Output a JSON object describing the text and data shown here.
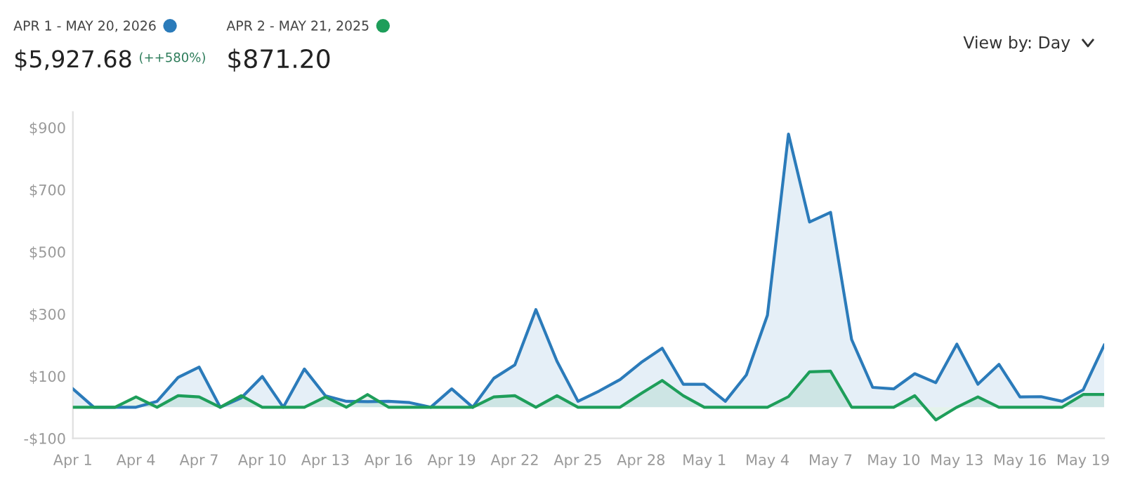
{
  "chart_data": {
    "type": "area",
    "x": [
      "2026-04-01",
      "2026-04-02",
      "2026-04-03",
      "2026-04-04",
      "2026-04-05",
      "2026-04-06",
      "2026-04-07",
      "2026-04-08",
      "2026-04-09",
      "2026-04-10",
      "2026-04-11",
      "2026-04-12",
      "2026-04-13",
      "2026-04-14",
      "2026-04-15",
      "2026-04-16",
      "2026-04-17",
      "2026-04-18",
      "2026-04-19",
      "2026-04-20",
      "2026-04-21",
      "2026-04-22",
      "2026-04-23",
      "2026-04-24",
      "2026-04-25",
      "2026-04-26",
      "2026-04-27",
      "2026-04-28",
      "2026-04-29",
      "2026-04-30",
      "2026-05-01",
      "2026-05-02",
      "2026-05-03",
      "2026-05-04",
      "2026-05-05",
      "2026-05-06",
      "2026-05-07",
      "2026-05-08",
      "2026-05-09",
      "2026-05-10",
      "2026-05-11",
      "2026-05-12",
      "2026-05-13",
      "2026-05-14",
      "2026-05-15",
      "2026-05-16",
      "2026-05-17",
      "2026-05-18",
      "2026-05-19",
      "2026-05-20"
    ],
    "series": [
      {
        "name": "APR 1 - MAY 20, 2026",
        "color": "#2b7bba",
        "values": [
          59,
          0,
          0,
          0,
          19,
          96,
          129,
          0,
          30,
          99,
          0,
          123,
          37,
          19,
          18,
          19,
          15,
          0,
          59,
          0,
          93,
          136,
          314,
          148,
          19,
          52,
          89,
          144,
          190,
          74,
          74,
          19,
          104,
          296,
          879,
          596,
          627,
          218,
          64,
          59,
          108,
          79,
          203,
          74,
          138,
          33,
          34,
          19,
          56,
          200
        ]
      },
      {
        "name": "APR 2 - MAY 21, 2025",
        "color": "#1e9e5a",
        "values": [
          0,
          0,
          0,
          33,
          0,
          37,
          33,
          0,
          37,
          0,
          0,
          0,
          33,
          0,
          41,
          0,
          0,
          0,
          0,
          0,
          33,
          37,
          0,
          37,
          0,
          0,
          0,
          44,
          86,
          37,
          0,
          0,
          0,
          0,
          34,
          114,
          116,
          0,
          0,
          0,
          37,
          -41,
          0,
          33,
          0,
          0,
          0,
          0,
          41,
          41
        ]
      }
    ],
    "ylim": [
      -100,
      950
    ],
    "yticks": [
      {
        "value": -100,
        "label": "-$100"
      },
      {
        "value": 100,
        "label": "$100"
      },
      {
        "value": 300,
        "label": "$300"
      },
      {
        "value": 500,
        "label": "$500"
      },
      {
        "value": 700,
        "label": "$700"
      },
      {
        "value": 900,
        "label": "$900"
      }
    ],
    "xlim": [
      "2026-04-01",
      "2026-05-20"
    ],
    "xticks": [
      {
        "value": "2026-04-01",
        "label": "Apr 1"
      },
      {
        "value": "2026-04-04",
        "label": "Apr 4"
      },
      {
        "value": "2026-04-07",
        "label": "Apr 7"
      },
      {
        "value": "2026-04-10",
        "label": "Apr 10"
      },
      {
        "value": "2026-04-13",
        "label": "Apr 13"
      },
      {
        "value": "2026-04-16",
        "label": "Apr 16"
      },
      {
        "value": "2026-04-19",
        "label": "Apr 19"
      },
      {
        "value": "2026-04-22",
        "label": "Apr 22"
      },
      {
        "value": "2026-04-25",
        "label": "Apr 25"
      },
      {
        "value": "2026-04-28",
        "label": "Apr 28"
      },
      {
        "value": "2026-05-01",
        "label": "May 1"
      },
      {
        "value": "2026-05-04",
        "label": "May 4"
      },
      {
        "value": "2026-05-07",
        "label": "May 7"
      },
      {
        "value": "2026-05-10",
        "label": "May 10"
      },
      {
        "value": "2026-05-13",
        "label": "May 13"
      },
      {
        "value": "2026-05-16",
        "label": "May 16"
      },
      {
        "value": "2026-05-19",
        "label": "May 19"
      }
    ],
    "annotations": [
      "$5,927.68",
      "(++580%)",
      "$871.20",
      "View by: Day"
    ],
    "legend": "top left",
    "grid": false,
    "marker": "none",
    "line_style": "solid"
  }
}
